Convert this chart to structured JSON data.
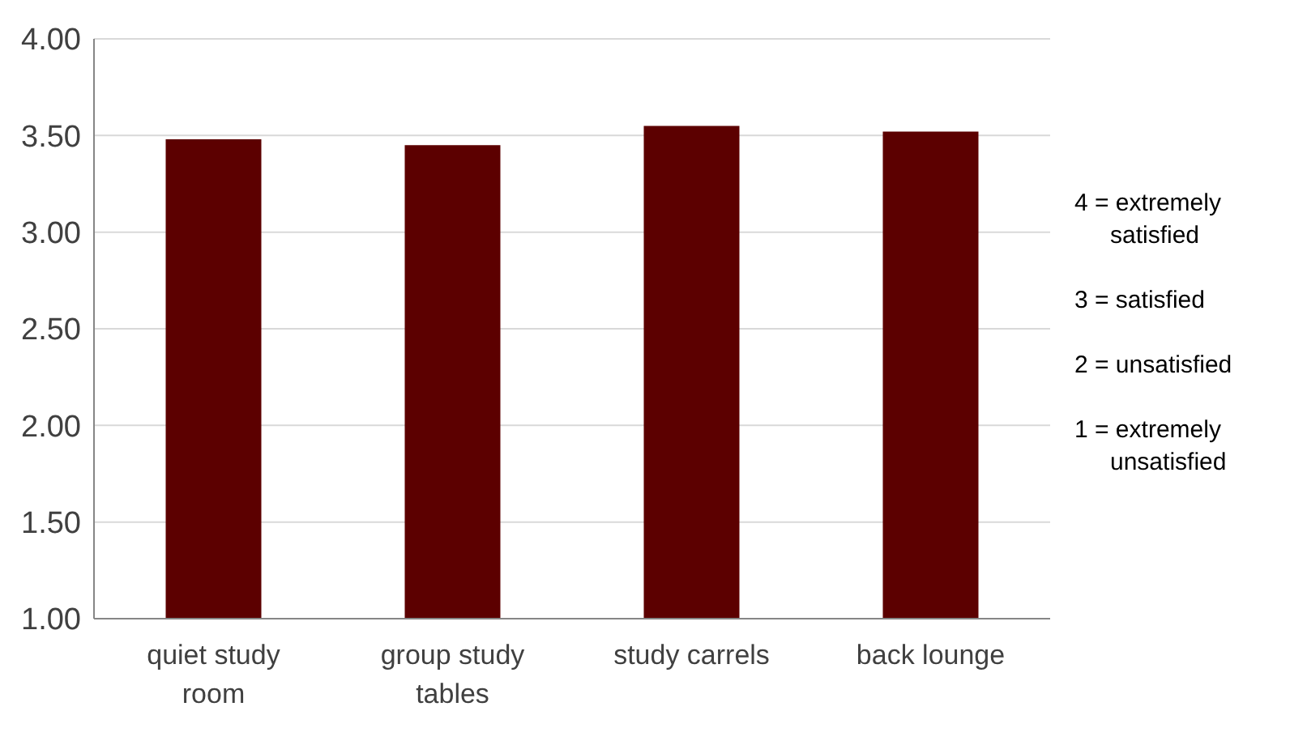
{
  "chart_data": {
    "type": "bar",
    "categories": [
      "quiet study room",
      "group study tables",
      "study carrels",
      "back lounge"
    ],
    "values": [
      3.48,
      3.45,
      3.55,
      3.52
    ],
    "color": "#5c0000",
    "ylim": [
      1,
      4
    ],
    "yticks": [
      {
        "value": 1,
        "label": "1.00"
      },
      {
        "value": 1.5,
        "label": "1.50"
      },
      {
        "value": 2,
        "label": "2.00"
      },
      {
        "value": 2.5,
        "label": "2.50"
      },
      {
        "value": 3,
        "label": "3.00"
      },
      {
        "value": 3.5,
        "label": "3.50"
      },
      {
        "value": 4,
        "label": "4.00"
      }
    ],
    "grid": "y",
    "annotations": [
      "4 = extremely satisfied",
      "3 = satisfied",
      "2 = unsatisfied",
      "1 = extremely unsatisfied"
    ]
  }
}
